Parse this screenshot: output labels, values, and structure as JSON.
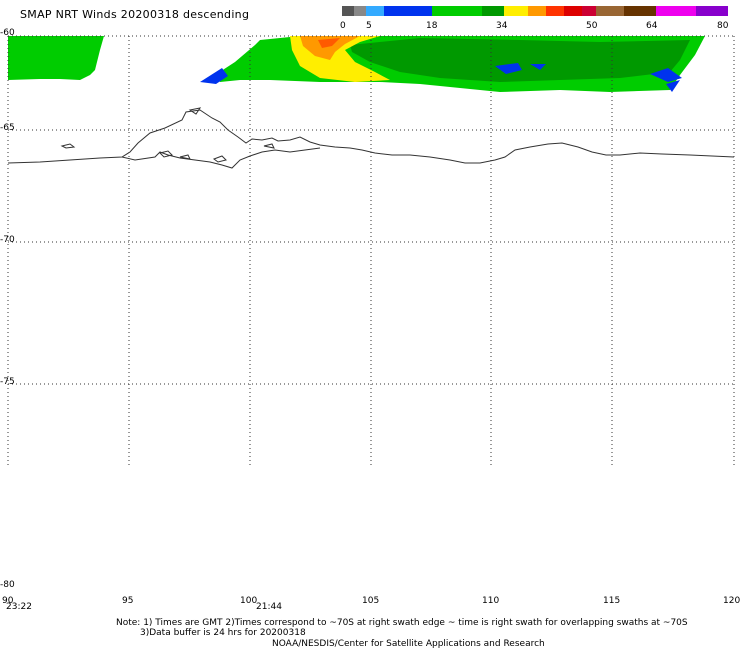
{
  "header": {
    "title": "SMAP NRT Winds  20200318 descending"
  },
  "colorbar": {
    "ticks": [
      "0",
      "5",
      "18",
      "34",
      "50",
      "64",
      "80"
    ],
    "colors": [
      "#555555",
      "#888888",
      "#33aaff",
      "#0033ee",
      "#00cc00",
      "#009900",
      "#ffee00",
      "#ff9900",
      "#ff3300",
      "#dd0000",
      "#cc0033",
      "#996633",
      "#663300",
      "#ee00ee",
      "#8800cc"
    ]
  },
  "map": {
    "lat_labels": [
      "-60",
      "-65",
      "-70",
      "-75",
      "-80"
    ],
    "lon_labels": [
      "90",
      "95",
      "100",
      "105",
      "110",
      "115",
      "120"
    ],
    "times": [
      "23:22",
      "21:44"
    ]
  },
  "notes": {
    "line1": "Note: 1) Times are GMT 2)Times correspond to ~70S at right swath edge ~ time is right swath for overlapping swaths at ~70S",
    "line2": "3)Data buffer is 24 hrs for 20200318",
    "line3": "NOAA/NESDIS/Center for Satellite Applications and Research"
  }
}
